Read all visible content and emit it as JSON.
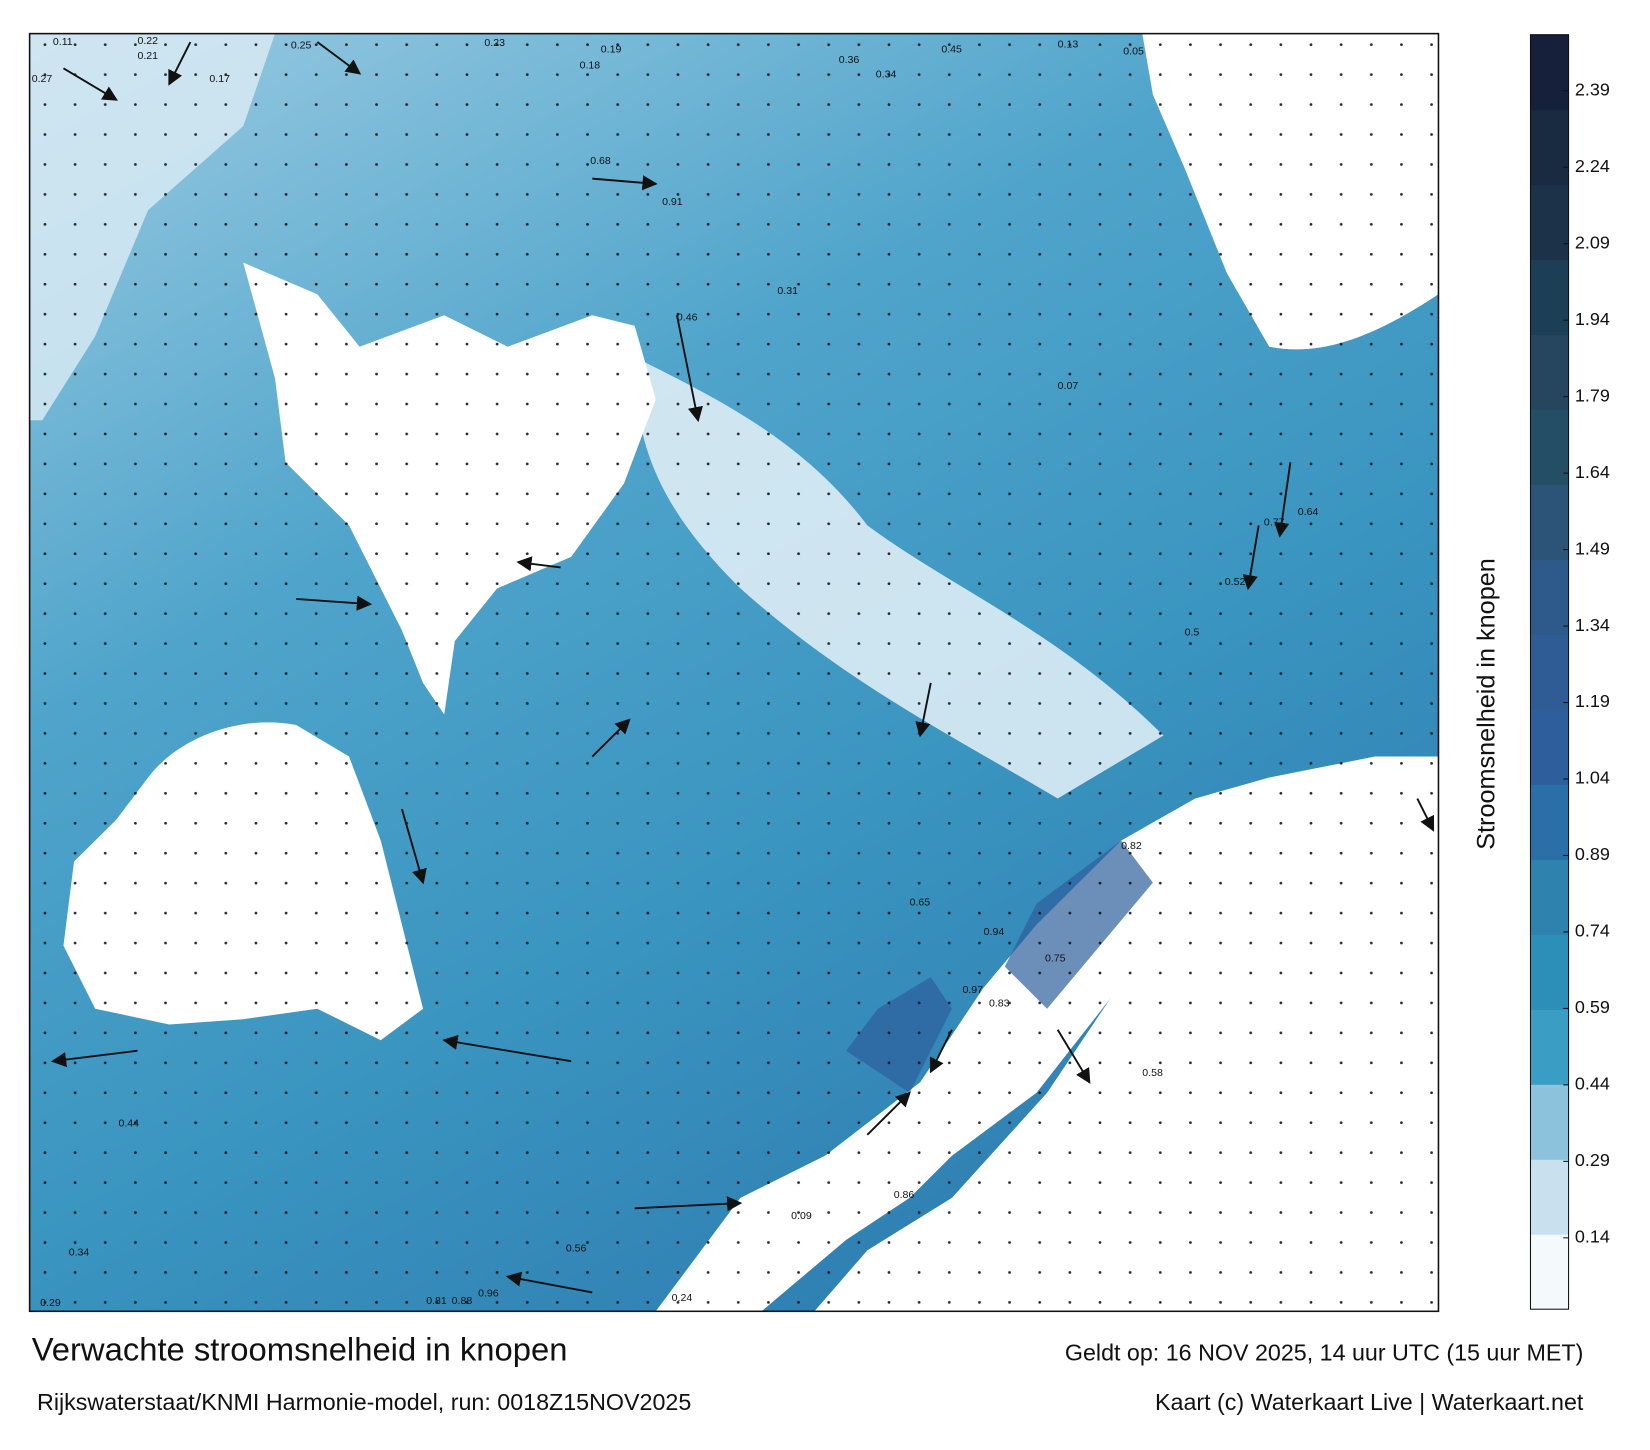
{
  "header": {
    "title": "Verwachte stroomsnelheid in knopen",
    "subtitle": "Rijkswaterstaat/KNMI Harmonie-model, run: 0018Z15NOV2025",
    "valid": "Geldt op: 16 NOV 2025, 14 uur UTC (15 uur MET)",
    "credit": "Kaart (c) Waterkaart Live | Waterkaart.net"
  },
  "colorbar": {
    "label": "Stroomsnelheid in knopen",
    "clim": [
      0,
      2.5
    ],
    "ticks": [
      0.14,
      0.29,
      0.44,
      0.59,
      0.74,
      0.89,
      1.04,
      1.19,
      1.34,
      1.49,
      1.64,
      1.79,
      1.94,
      2.09,
      2.24,
      2.39
    ],
    "colors": [
      "#f4f9fc",
      "#c9e1ee",
      "#8cc2dc",
      "#3a9dc4",
      "#2b8fb8",
      "#2d82ae",
      "#2b6fa8",
      "#2e5f9c",
      "#2f5c95",
      "#2d5a8a",
      "#2c5479",
      "#244d66",
      "#25465e",
      "#1d3f55",
      "#1b3248",
      "#192b40",
      "#16203a"
    ]
  },
  "map_labels": [
    "0.11",
    "0.22",
    "0.21",
    "0.27",
    "0.25",
    "0.23",
    "0.19",
    "0.36",
    "0.34",
    "0.45",
    "0.13",
    "0.05",
    "0.18",
    "0.17",
    "0.68",
    "0.91",
    "0.46",
    "0.31",
    "0.5",
    "0.52",
    "0.77",
    "0.64",
    "0.58",
    "0.82",
    "0.94",
    "0.97",
    "0.83",
    "0.75",
    "0.86",
    "0.65",
    "0.56",
    "0.81",
    "0.88",
    "0.96",
    "0.44",
    "0.34",
    "0.29",
    "0.24",
    "0.09",
    "0.07"
  ]
}
